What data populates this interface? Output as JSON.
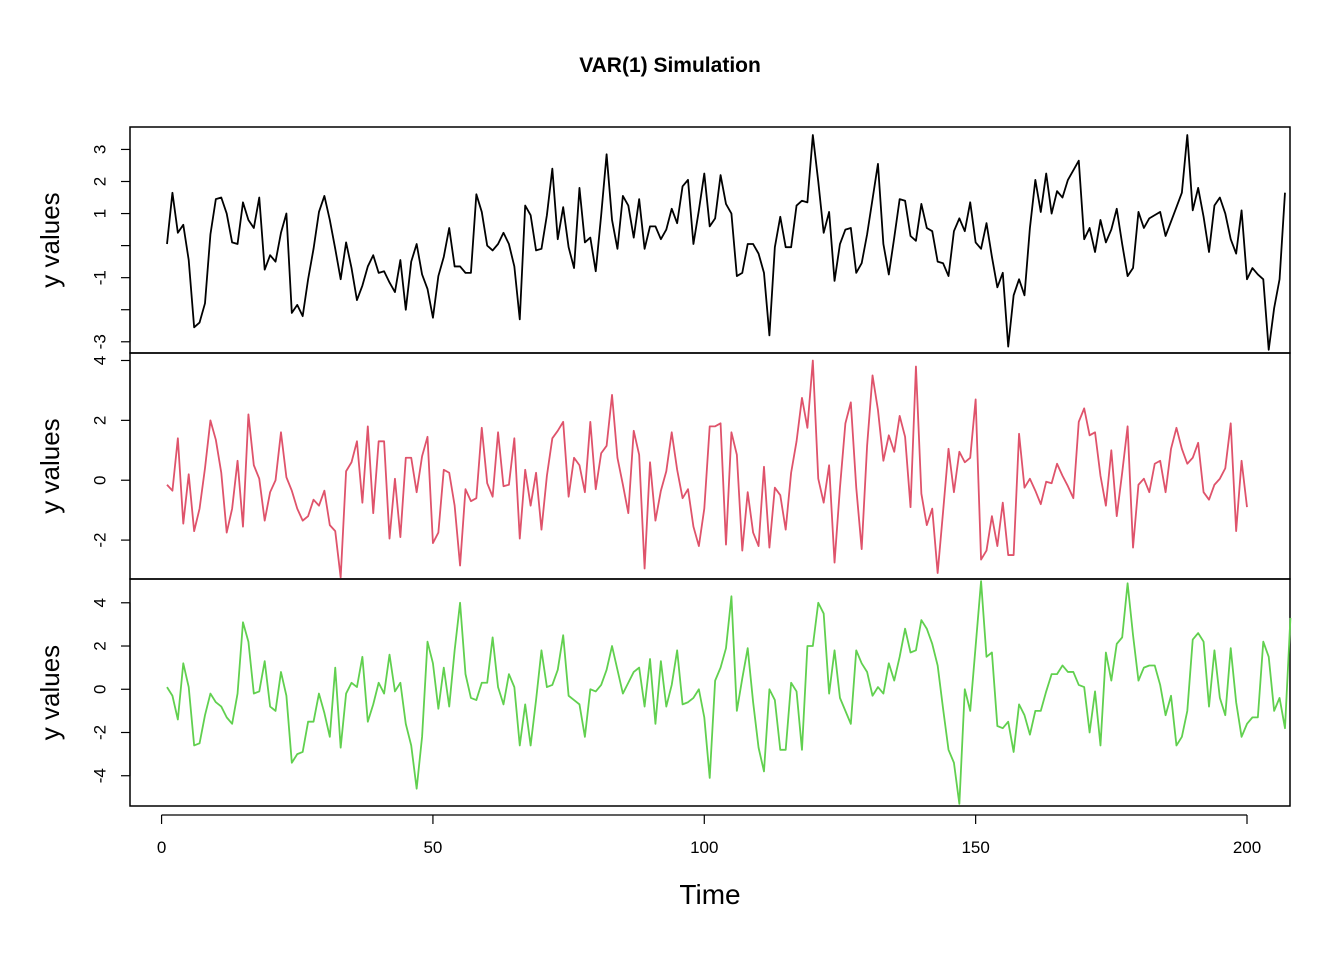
{
  "chart_data": {
    "type": "line",
    "title": "VAR(1) Simulation",
    "xlabel": "Time",
    "x_ticks": [
      0,
      50,
      100,
      150,
      200
    ],
    "xlim": [
      1,
      200
    ],
    "grid": false,
    "panels": [
      {
        "name": "",
        "ylabel": "y values",
        "color": "#000000",
        "ylim": [
          -3.35,
          3.7
        ],
        "y_ticks": [
          -3,
          -2,
          -1,
          0,
          1,
          2,
          3
        ],
        "y_tick_labels": [
          "-3",
          "",
          "-1",
          "",
          "1",
          "2",
          "3"
        ],
        "values": [
          0.05,
          1.65,
          0.4,
          0.65,
          -0.45,
          -2.55,
          -2.4,
          -1.8,
          0.35,
          1.45,
          1.5,
          1.0,
          0.1,
          0.05,
          1.35,
          0.8,
          0.55,
          1.5,
          -0.75,
          -0.3,
          -0.5,
          0.4,
          1.0,
          -2.1,
          -1.85,
          -2.2,
          -1.05,
          -0.1,
          1.05,
          1.55,
          0.8,
          -0.1,
          -1.05,
          0.1,
          -0.7,
          -1.7,
          -1.25,
          -0.65,
          -0.3,
          -0.85,
          -0.8,
          -1.15,
          -1.45,
          -0.45,
          -2.0,
          -0.5,
          0.05,
          -0.9,
          -1.35,
          -2.25,
          -0.95,
          -0.35,
          0.55,
          -0.65,
          -0.65,
          -0.85,
          -0.85,
          1.6,
          1.05,
          0.0,
          -0.15,
          0.05,
          0.4,
          0.05,
          -0.65,
          -2.3,
          1.25,
          0.95,
          -0.15,
          -0.1,
          0.95,
          2.4,
          0.2,
          1.2,
          -0.05,
          -0.7,
          1.8,
          0.1,
          0.25,
          -0.8,
          0.95,
          2.85,
          0.8,
          -0.1,
          1.55,
          1.25,
          0.25,
          1.45,
          -0.1,
          0.6,
          0.6,
          0.2,
          0.5,
          1.15,
          0.7,
          1.85,
          2.05,
          0.05,
          1.1,
          2.25,
          0.6,
          0.85,
          2.2,
          1.3,
          1.0,
          -0.95,
          -0.85,
          0.05,
          0.05,
          -0.25,
          -0.85,
          -2.8,
          -0.05,
          0.9,
          -0.05,
          -0.05,
          1.25,
          1.4,
          1.35,
          3.45,
          2.0,
          0.4,
          1.05,
          -1.1,
          0.05,
          0.5,
          0.55,
          -0.85,
          -0.55,
          0.35,
          1.45,
          2.55,
          0.05,
          -0.9,
          0.25,
          1.45,
          1.4,
          0.3,
          0.15,
          1.3,
          0.55,
          0.45,
          -0.5,
          -0.55,
          -0.95,
          0.45,
          0.85,
          0.45,
          1.35,
          0.1,
          -0.1,
          0.7,
          -0.35,
          -1.3,
          -0.85,
          -3.15,
          -1.55,
          -1.05,
          -1.55,
          0.55,
          2.05,
          1.05,
          2.25,
          1.0,
          1.7,
          1.5,
          2.05,
          2.35,
          2.65,
          0.2,
          0.55,
          -0.2,
          0.8,
          0.1,
          0.5,
          1.15,
          0.05,
          -0.95,
          -0.7,
          1.05,
          0.55,
          0.85,
          0.95,
          1.05,
          0.3,
          0.75,
          1.2,
          1.65,
          3.45,
          1.1,
          1.8,
          0.9,
          -0.2,
          1.25,
          1.5,
          1.0,
          0.2,
          -0.25,
          1.1,
          -1.05,
          -0.7,
          -0.9,
          -1.05,
          -3.25,
          -1.95,
          -1.05,
          1.65
        ]
      },
      {
        "name": "",
        "ylabel": "y values",
        "color": "#DF536B",
        "ylim": [
          -3.3,
          4.25
        ],
        "y_ticks": [
          -2,
          0,
          2,
          4
        ],
        "y_tick_labels": [
          "-2",
          "0",
          "2",
          "4"
        ],
        "values": [
          -0.15,
          -0.35,
          1.4,
          -1.45,
          0.2,
          -1.7,
          -0.95,
          0.4,
          2.0,
          1.35,
          0.25,
          -1.75,
          -0.95,
          0.65,
          -1.55,
          2.2,
          0.5,
          0.05,
          -1.35,
          -0.4,
          0.0,
          1.6,
          0.1,
          -0.35,
          -0.95,
          -1.35,
          -1.2,
          -0.65,
          -0.85,
          -0.35,
          -1.5,
          -1.7,
          -3.25,
          0.3,
          0.6,
          1.3,
          -0.75,
          1.8,
          -1.1,
          1.3,
          1.3,
          -1.95,
          0.05,
          -1.9,
          0.75,
          0.75,
          -0.4,
          0.8,
          1.45,
          -2.1,
          -1.75,
          0.35,
          0.25,
          -0.85,
          -2.85,
          -0.3,
          -0.7,
          -0.6,
          1.75,
          -0.1,
          -0.55,
          1.6,
          -0.2,
          -0.15,
          1.4,
          -1.95,
          0.35,
          -0.85,
          0.25,
          -1.65,
          0.15,
          1.4,
          1.65,
          1.95,
          -0.55,
          0.75,
          0.5,
          -0.4,
          1.95,
          -0.3,
          0.9,
          1.15,
          2.85,
          0.75,
          -0.15,
          -1.1,
          1.65,
          0.85,
          -2.95,
          0.6,
          -1.35,
          -0.35,
          0.3,
          1.6,
          0.35,
          -0.6,
          -0.3,
          -1.55,
          -2.2,
          -0.95,
          1.8,
          1.8,
          1.9,
          -2.15,
          1.6,
          0.85,
          -2.35,
          -0.4,
          -1.75,
          -2.2,
          0.45,
          -2.25,
          -0.25,
          -0.5,
          -1.65,
          0.25,
          1.3,
          2.75,
          1.75,
          4.0,
          0.05,
          -0.75,
          0.5,
          -2.75,
          -0.25,
          1.9,
          2.6,
          -0.25,
          -2.3,
          1.15,
          3.5,
          2.35,
          0.65,
          1.5,
          0.95,
          2.15,
          1.45,
          -0.9,
          3.8,
          -0.45,
          -1.5,
          -0.95,
          -3.1,
          -1.05,
          1.05,
          -0.4,
          0.95,
          0.6,
          0.75,
          2.7,
          -2.65,
          -2.35,
          -1.2,
          -2.2,
          -0.75,
          -2.5,
          -2.5,
          1.55,
          -0.25,
          0.05,
          -0.35,
          -0.8,
          -0.05,
          -0.1,
          0.55,
          0.15,
          -0.2,
          -0.6,
          1.95,
          2.4,
          1.5,
          1.6,
          0.15,
          -0.85,
          1.0,
          -1.2,
          0.25,
          1.8,
          -2.25,
          -0.15,
          0.05,
          -0.4,
          0.55,
          0.65,
          -0.4,
          1.05,
          1.75,
          1.05,
          0.55,
          0.75,
          1.25,
          -0.4,
          -0.65,
          -0.15,
          0.05,
          0.4,
          1.9,
          -1.7,
          0.65,
          -0.9
        ]
      },
      {
        "name": "",
        "ylabel": "y values",
        "color": "#61D04F",
        "ylim": [
          -5.4,
          5.1
        ],
        "y_ticks": [
          -4,
          -2,
          0,
          2,
          4
        ],
        "y_tick_labels": [
          "-4",
          "-2",
          "0",
          "2",
          "4"
        ],
        "values": [
          0.1,
          -0.3,
          -1.4,
          1.2,
          0.1,
          -2.6,
          -2.5,
          -1.2,
          -0.2,
          -0.6,
          -0.8,
          -1.3,
          -1.6,
          -0.2,
          3.1,
          2.2,
          -0.2,
          -0.1,
          1.3,
          -0.8,
          -1.0,
          0.8,
          -0.3,
          -3.4,
          -3.0,
          -2.9,
          -1.5,
          -1.5,
          -0.2,
          -1.1,
          -2.2,
          1.0,
          -2.7,
          -0.2,
          0.3,
          0.1,
          1.5,
          -1.5,
          -0.7,
          0.3,
          -0.2,
          1.6,
          -0.1,
          0.3,
          -1.6,
          -2.6,
          -4.6,
          -2.2,
          2.2,
          1.2,
          -0.9,
          1.0,
          -0.8,
          1.8,
          4.0,
          0.7,
          -0.4,
          -0.5,
          0.3,
          0.3,
          2.4,
          0.1,
          -0.7,
          0.7,
          0.1,
          -2.6,
          -0.7,
          -2.6,
          -0.5,
          1.8,
          0.1,
          0.2,
          0.9,
          2.5,
          -0.3,
          -0.5,
          -0.7,
          -2.2,
          0.0,
          -0.1,
          0.2,
          0.9,
          2.0,
          0.9,
          -0.2,
          0.3,
          0.8,
          1.0,
          -0.8,
          1.4,
          -1.6,
          1.3,
          -0.8,
          0.2,
          1.8,
          -0.7,
          -0.6,
          -0.4,
          0.0,
          -1.3,
          -4.1,
          0.4,
          1.0,
          1.9,
          4.3,
          -1.0,
          0.5,
          1.9,
          -0.6,
          -2.7,
          -3.8,
          0.0,
          -0.5,
          -2.8,
          -2.8,
          0.3,
          -0.1,
          -2.8,
          2.0,
          2.0,
          4.0,
          3.5,
          -0.2,
          1.8,
          -0.4,
          -1.0,
          -1.6,
          1.8,
          1.2,
          0.8,
          -0.3,
          0.1,
          -0.2,
          1.2,
          0.4,
          1.5,
          2.8,
          1.7,
          1.8,
          3.2,
          2.8,
          2.1,
          1.1,
          -0.9,
          -2.8,
          -3.4,
          -5.3,
          0.0,
          -1.0,
          2.0,
          5.0,
          1.5,
          1.7,
          -1.7,
          -1.8,
          -1.5,
          -2.9,
          -0.7,
          -1.2,
          -2.1,
          -1.0,
          -1.0,
          -0.1,
          0.7,
          0.7,
          1.1,
          0.8,
          0.8,
          0.2,
          0.1,
          -2.0,
          -0.1,
          -2.6,
          1.7,
          0.4,
          2.1,
          2.4,
          4.9,
          2.5,
          0.4,
          1.0,
          1.1,
          1.1,
          0.2,
          -1.2,
          -0.3,
          -2.6,
          -2.2,
          -1.0,
          2.3,
          2.6,
          2.2,
          -0.8,
          1.8,
          -0.4,
          -1.2,
          1.9,
          -0.6,
          -2.2,
          -1.6,
          -1.3,
          -1.3,
          2.2,
          1.5,
          -1.0,
          -0.4,
          -1.8,
          3.3
        ]
      }
    ]
  }
}
